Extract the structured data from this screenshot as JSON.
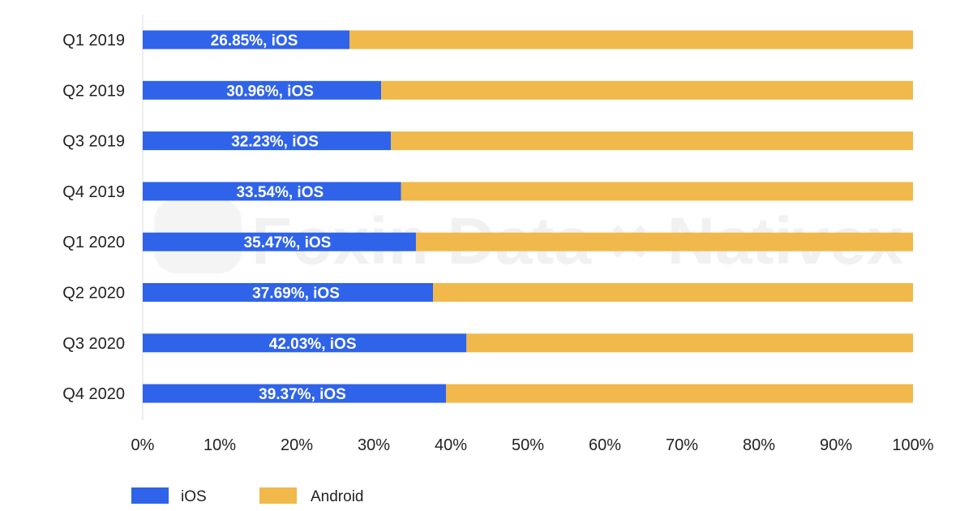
{
  "chart_data": {
    "type": "bar",
    "orientation": "horizontal",
    "stacked": "percent",
    "categories": [
      "Q1 2019",
      "Q2 2019",
      "Q3 2019",
      "Q4 2019",
      "Q1 2020",
      "Q2 2020",
      "Q3 2020",
      "Q4 2020"
    ],
    "series": [
      {
        "name": "iOS",
        "color": "#2f63e9",
        "values": [
          26.85,
          30.96,
          32.23,
          33.54,
          35.47,
          37.69,
          42.03,
          39.37
        ],
        "data_labels": [
          "26.85%, iOS",
          "30.96%, iOS",
          "32.23%, iOS",
          "33.54%, iOS",
          "35.47%, iOS",
          "37.69%, iOS",
          "42.03%, iOS",
          "39.37%, iOS"
        ]
      },
      {
        "name": "Android",
        "color": "#f1b94b",
        "values": [
          73.15,
          69.04,
          67.77,
          66.46,
          64.53,
          62.31,
          57.97,
          60.63
        ]
      }
    ],
    "xlim": [
      0,
      100
    ],
    "x_ticks": [
      "0%",
      "10%",
      "20%",
      "30%",
      "40%",
      "50%",
      "60%",
      "70%",
      "80%",
      "90%",
      "100%"
    ],
    "grid": false,
    "legend_position": "bottom-left",
    "title": "",
    "xlabel": "",
    "ylabel": ""
  },
  "watermark": {
    "text": "Foxin Data × Nativex"
  }
}
